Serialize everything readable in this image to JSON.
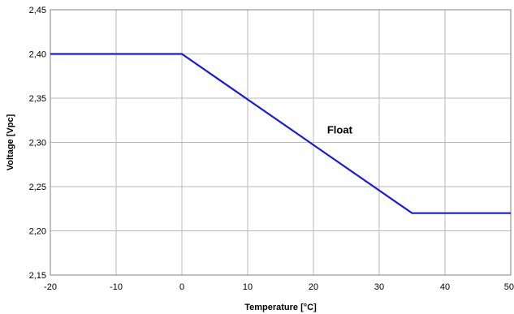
{
  "chart_data": {
    "type": "line",
    "xlabel": "Temperature [°C]",
    "ylabel": "Voltage [Vpc]",
    "xlim": [
      -20,
      50
    ],
    "ylim": [
      2.15,
      2.45
    ],
    "x_ticks": [
      -20,
      -10,
      0,
      10,
      20,
      30,
      40,
      50
    ],
    "y_ticks": [
      "2,15",
      "2,20",
      "2,25",
      "2,30",
      "2,35",
      "2,40",
      "2,45"
    ],
    "y_tick_values": [
      2.15,
      2.2,
      2.25,
      2.3,
      2.35,
      2.4,
      2.45
    ],
    "grid": true,
    "series": [
      {
        "color": "#1a1adb",
        "x": [
          -20,
          0,
          35,
          50
        ],
        "y": [
          2.4,
          2.4,
          2.22,
          2.22
        ]
      }
    ],
    "annotations": [
      {
        "text": "Float",
        "x": 24,
        "y": 2.31
      }
    ]
  }
}
